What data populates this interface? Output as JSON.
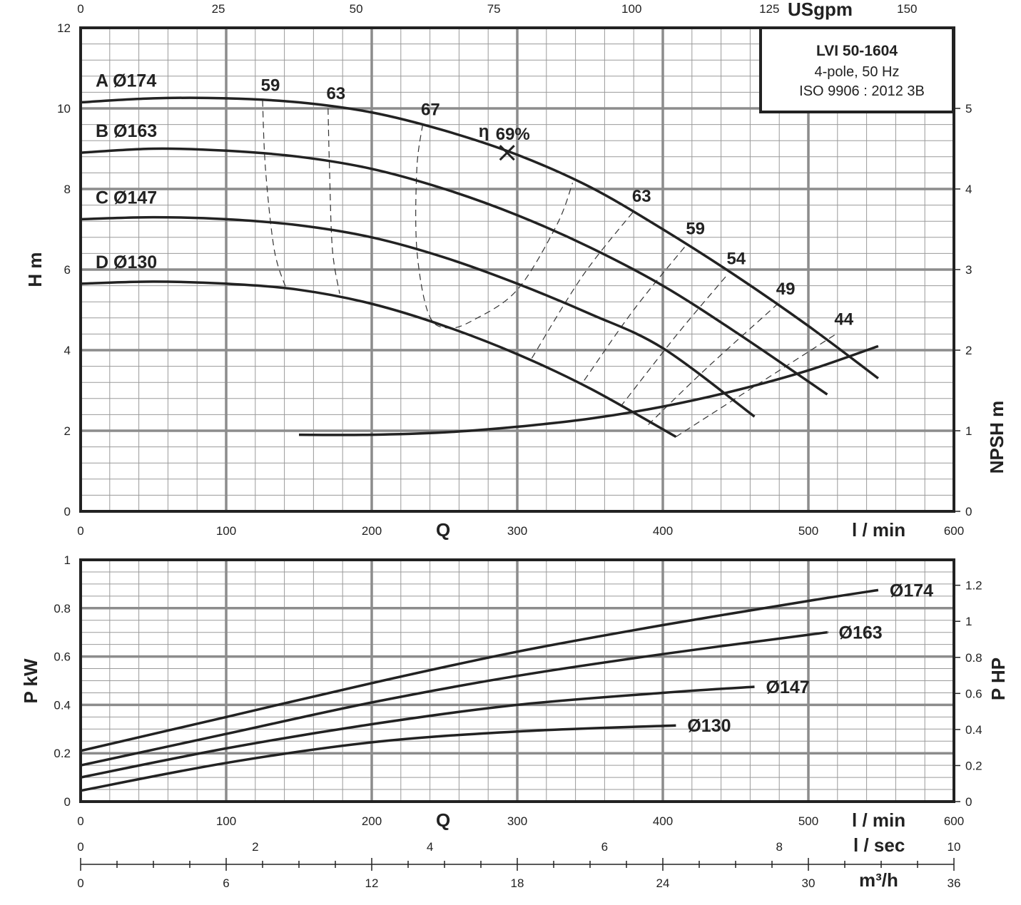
{
  "title_box": {
    "model": "LVI 50-1604",
    "line2": "4-pole, 50 Hz",
    "line3": "ISO 9906 : 2012 3B"
  },
  "axes": {
    "q_label": "Q",
    "lmin_label": "l / min",
    "lsec_label": "l / sec",
    "m3h_label": "m³/h",
    "usgpm_label": "USgpm",
    "h_label": "H m",
    "npsh_label": "NPSH m",
    "pkw_label": "P kW",
    "php_label": "P HP",
    "x_lmin_ticks": [
      "0",
      "100",
      "200",
      "300",
      "400",
      "500",
      "600"
    ],
    "x_usgpm_ticks": [
      "0",
      "25",
      "50",
      "75",
      "100",
      "125",
      "150"
    ],
    "x_lsec_ticks": [
      "0",
      "2",
      "4",
      "6",
      "8",
      "10"
    ],
    "x_m3h_ticks": [
      "0",
      "6",
      "12",
      "18",
      "24",
      "30",
      "36"
    ],
    "h_ticks": [
      "0",
      "2",
      "4",
      "6",
      "8",
      "10",
      "12"
    ],
    "npsh_ticks": [
      "0",
      "1",
      "2",
      "3",
      "4",
      "5"
    ],
    "pkw_ticks": [
      "0",
      "0.2",
      "0.4",
      "0.6",
      "0.8",
      "1"
    ],
    "php_ticks": [
      "0",
      "0.2",
      "0.4",
      "0.6",
      "0.8",
      "1",
      "1.2"
    ]
  },
  "chart_data": [
    {
      "type": "line",
      "title": "LVI 50-1604",
      "xlabel": "Q l / min",
      "ylabel": "H m",
      "xlim": [
        0,
        600
      ],
      "ylim": [
        0,
        12
      ],
      "grid": true,
      "series": [
        {
          "name": "A Ø174",
          "x": [
            0,
            50,
            100,
            150,
            200,
            250,
            300,
            350,
            400,
            450,
            500,
            548
          ],
          "y": [
            10.15,
            10.25,
            10.25,
            10.15,
            9.9,
            9.45,
            8.85,
            8.05,
            7.0,
            5.85,
            4.6,
            3.3
          ]
        },
        {
          "name": "B Ø163",
          "x": [
            0,
            50,
            100,
            150,
            200,
            250,
            300,
            350,
            400,
            450,
            513
          ],
          "y": [
            8.9,
            9.0,
            8.95,
            8.8,
            8.5,
            8.0,
            7.35,
            6.55,
            5.6,
            4.45,
            2.9
          ]
        },
        {
          "name": "C Ø147",
          "x": [
            0,
            50,
            100,
            150,
            200,
            250,
            300,
            350,
            400,
            463
          ],
          "y": [
            7.25,
            7.3,
            7.25,
            7.1,
            6.8,
            6.3,
            5.65,
            4.9,
            4.05,
            2.35
          ]
        },
        {
          "name": "D Ø130",
          "x": [
            0,
            50,
            100,
            150,
            200,
            250,
            300,
            350,
            409
          ],
          "y": [
            5.65,
            5.7,
            5.65,
            5.5,
            5.15,
            4.6,
            3.9,
            3.05,
            1.85
          ]
        }
      ],
      "efficiency_contours": [
        {
          "label": "59",
          "x": [
            125,
            127,
            133,
            141
          ],
          "y": [
            10.2,
            8.5,
            6.5,
            5.55
          ]
        },
        {
          "label": "63",
          "x": [
            170,
            171,
            173,
            178
          ],
          "y": [
            10.0,
            8.5,
            6.5,
            5.4
          ]
        },
        {
          "label": "67",
          "x": [
            235,
            231,
            231,
            239,
            252,
            270,
            300,
            327,
            338
          ],
          "y": [
            9.6,
            8.5,
            6.5,
            4.9,
            4.55,
            4.75,
            5.5,
            7.1,
            8.15
          ]
        },
        {
          "label": "63",
          "x": [
            310,
            345,
            380
          ],
          "y": [
            3.8,
            5.85,
            7.45
          ]
        },
        {
          "label": "59",
          "x": [
            346,
            380,
            417
          ],
          "y": [
            3.25,
            5.0,
            6.65
          ]
        },
        {
          "label": "54",
          "x": [
            371,
            410,
            445
          ],
          "y": [
            2.6,
            4.4,
            5.9
          ]
        },
        {
          "label": "49",
          "x": [
            390,
            430,
            479
          ],
          "y": [
            2.15,
            3.55,
            5.15
          ]
        },
        {
          "label": "44",
          "x": [
            409,
            450,
            519
          ],
          "y": [
            1.85,
            2.8,
            4.4
          ]
        }
      ],
      "best_efficiency_point": {
        "label": "69%",
        "symbol": "η",
        "x": 293,
        "y": 8.9
      },
      "npsh": {
        "name": "NPSH",
        "ylim": [
          0,
          6
        ],
        "x": [
          150,
          200,
          250,
          300,
          350,
          400,
          450,
          500,
          548
        ],
        "y": [
          0.95,
          0.95,
          0.98,
          1.05,
          1.15,
          1.3,
          1.5,
          1.75,
          2.05
        ]
      }
    },
    {
      "type": "line",
      "xlabel": "Q l / min",
      "ylabel": "P kW",
      "xlim": [
        0,
        600
      ],
      "ylim": [
        0,
        1
      ],
      "grid": true,
      "series": [
        {
          "name": "Ø174",
          "x": [
            0,
            100,
            200,
            300,
            400,
            500,
            548
          ],
          "y": [
            0.21,
            0.35,
            0.49,
            0.62,
            0.73,
            0.83,
            0.875
          ]
        },
        {
          "name": "Ø163",
          "x": [
            0,
            100,
            200,
            300,
            400,
            500,
            513
          ],
          "y": [
            0.15,
            0.28,
            0.41,
            0.52,
            0.61,
            0.69,
            0.7
          ]
        },
        {
          "name": "Ø147",
          "x": [
            0,
            100,
            200,
            300,
            400,
            463
          ],
          "y": [
            0.1,
            0.22,
            0.32,
            0.4,
            0.45,
            0.475
          ]
        },
        {
          "name": "Ø130",
          "x": [
            0,
            100,
            200,
            300,
            409
          ],
          "y": [
            0.045,
            0.16,
            0.245,
            0.29,
            0.315
          ]
        }
      ]
    }
  ]
}
